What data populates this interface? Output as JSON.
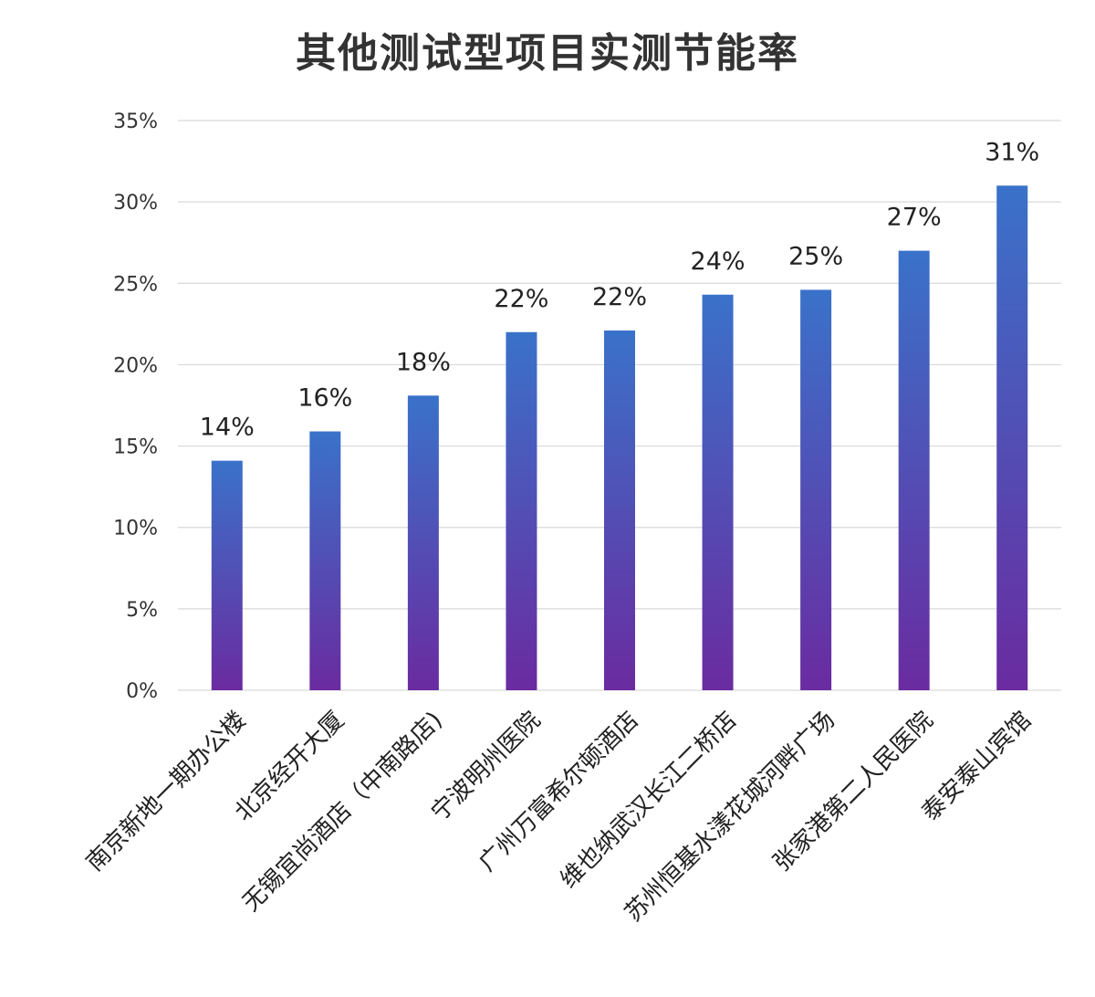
{
  "chart_data": {
    "type": "bar",
    "title": "其他测试型项目实测节能率",
    "xlabel": "",
    "ylabel": "",
    "categories": [
      "南京新地一期办公楼",
      "北京经开大厦",
      "无锡宜尚酒店（中南路店)",
      "宁波明州医院",
      "广州万富希尔顿酒店",
      "维也纳武汉长江二桥店",
      "苏州恒基水漾花城河畔广场",
      "张家港第二人民医院",
      "泰安泰山宾馆"
    ],
    "values": [
      14.1,
      15.9,
      18.1,
      22.0,
      22.1,
      24.3,
      24.6,
      27.0,
      31.0
    ],
    "data_labels": [
      "14%",
      "16%",
      "18%",
      "22%",
      "22%",
      "24%",
      "25%",
      "27%",
      "31%"
    ],
    "ylim": [
      0,
      35
    ],
    "yticks": [
      0,
      5,
      10,
      15,
      20,
      25,
      30,
      35
    ],
    "ytick_labels": [
      "0%",
      "5%",
      "10%",
      "15%",
      "20%",
      "25%",
      "30%",
      "35%"
    ],
    "grid": true,
    "legend": "none",
    "colors": {
      "bar_top": "#3a72c9",
      "bar_bottom": "#6a2ba0",
      "grid": "#d9d9d9",
      "title": "#333333",
      "text": "#222222"
    }
  }
}
